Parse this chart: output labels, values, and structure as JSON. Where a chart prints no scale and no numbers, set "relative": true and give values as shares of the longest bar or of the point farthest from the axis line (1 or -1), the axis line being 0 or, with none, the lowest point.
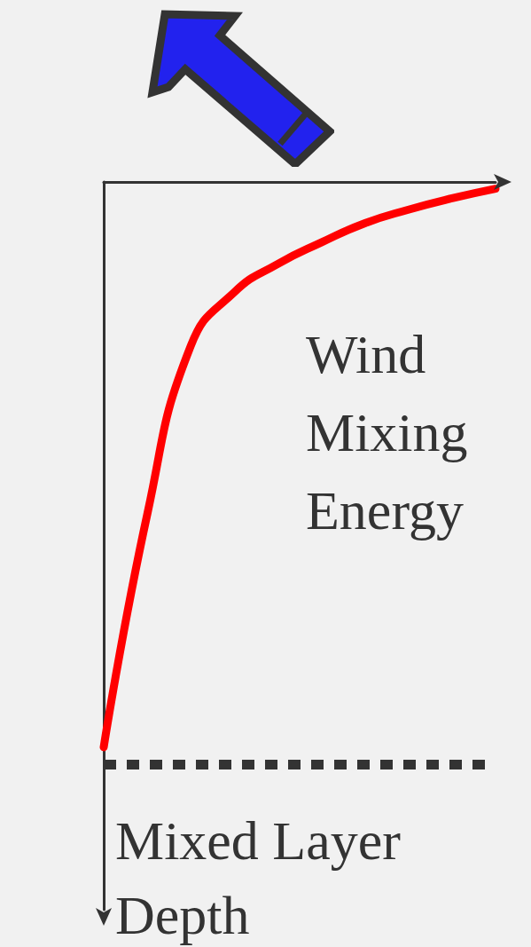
{
  "chart_data": {
    "type": "line",
    "relative": true,
    "annotations": [
      "Wind Mixing Energy",
      "Mixed Layer Depth"
    ],
    "categories": [
      null,
      null,
      null,
      null,
      null,
      null,
      null,
      null,
      null,
      null
    ],
    "series": [
      {
        "color": "#ff0000",
        "values": [
          -1,
          -0.588,
          -0.29,
          -0.195,
          -0.145,
          -0.107,
          -0.073,
          -0.049,
          -0.029,
          -0.012
        ]
      }
    ],
    "ref_lines": [
      {
        "axis": "y",
        "value": -1.03,
        "color": "#333333",
        "line_style": "dotted"
      }
    ],
    "marker": "none",
    "line_style": "solid",
    "grid": false
  }
}
